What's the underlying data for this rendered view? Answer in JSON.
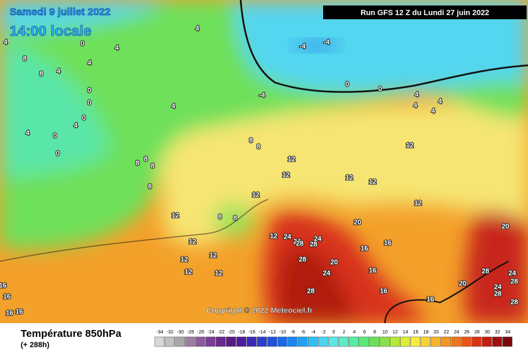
{
  "header": {
    "date": "Samedi 9 juillet 2022",
    "time": "14:00 locale",
    "run": "Run GFS 12 Z du Lundi 27 juin 2022"
  },
  "copyright": "Copyright © 2022 Meteociel.fr",
  "legend": {
    "title": "Température 850hPa",
    "lead": "(+ 288h)",
    "scale": [
      -34,
      -32,
      -30,
      -28,
      -26,
      -24,
      -22,
      -20,
      -18,
      -16,
      -14,
      -12,
      -10,
      -8,
      -6,
      -4,
      -2,
      0,
      2,
      4,
      6,
      8,
      10,
      12,
      14,
      16,
      18,
      20,
      22,
      24,
      26,
      28,
      30,
      32,
      34
    ],
    "colors": [
      "#d8d8d8",
      "#c0c0c0",
      "#a8a8a8",
      "#9a7fa0",
      "#8c5a9a",
      "#7a3c94",
      "#6a2a8c",
      "#5a1a86",
      "#4c1ca0",
      "#3a28b8",
      "#2c3ccc",
      "#2050dc",
      "#1a6ae6",
      "#1a86ee",
      "#22a2f2",
      "#34bef4",
      "#4ad4f2",
      "#5ee6e6",
      "#5cecc6",
      "#58eca0",
      "#5ae87a",
      "#6ae05a",
      "#8ae04a",
      "#b4e83c",
      "#dcee3a",
      "#f8ec3c",
      "#f8d234",
      "#f6b42c",
      "#f29624",
      "#ee761e",
      "#e85418",
      "#dc3214",
      "#c41c12",
      "#a0100e",
      "#7a080a"
    ]
  },
  "contour_labels": [
    "4",
    "0",
    "4",
    "4",
    "4",
    "8",
    "8",
    "4",
    "0",
    "0",
    "0",
    "4",
    "4",
    "0",
    "0",
    "8",
    "8",
    "8",
    "8",
    "-4",
    "4",
    "-4",
    "-4",
    "0",
    "0",
    "4",
    "4",
    "4",
    "4",
    "8",
    "8",
    "12",
    "12",
    "12",
    "12",
    "12",
    "12",
    "12",
    "12",
    "8",
    "8",
    "12",
    "12",
    "12",
    "12",
    "12",
    "12",
    "24",
    "24",
    "24",
    "28",
    "28",
    "20",
    "28",
    "20",
    "24",
    "16",
    "16",
    "16",
    "16",
    "16",
    "28",
    "20",
    "20",
    "28",
    "24",
    "28",
    "24",
    "28",
    "28",
    "16",
    "16",
    "16",
    "16"
  ]
}
